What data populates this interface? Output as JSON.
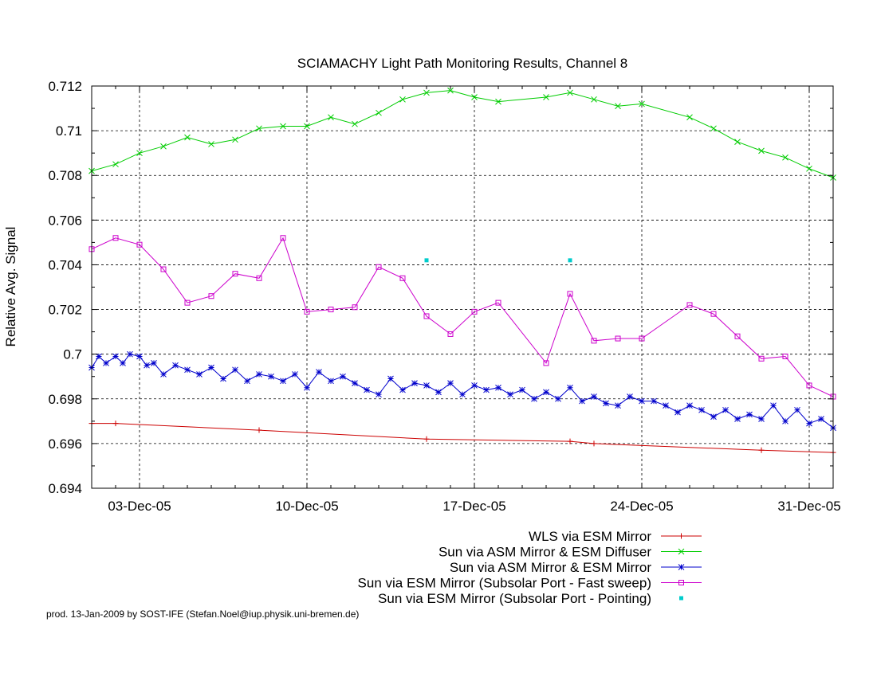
{
  "credit": "prod. 13-Jan-2009 by SOST-IFE (Stefan.Noel@iup.physik.uni-bremen.de)",
  "chart_data": {
    "type": "line",
    "title": "SCIAMACHY Light Path Monitoring Results, Channel 8",
    "xlabel": "",
    "ylabel": "Relative Avg. Signal",
    "xlim": [
      "2005-12-01",
      "2006-01-01"
    ],
    "ylim": [
      0.694,
      0.712
    ],
    "x_ticks": [
      "03-Dec-05",
      "10-Dec-05",
      "17-Dec-05",
      "24-Dec-05",
      "31-Dec-05"
    ],
    "y_ticks": [
      "0.694",
      "0.696",
      "0.698",
      "0.7",
      "0.702",
      "0.704",
      "0.706",
      "0.708",
      "0.71",
      "0.712"
    ],
    "grid": true,
    "legend_position": "below-right",
    "series": [
      {
        "name": "WLS via ESM Mirror",
        "color": "#cc0000",
        "marker": "plus",
        "x": [
          "2005-12-01",
          "2005-12-02",
          "2005-12-08",
          "2005-12-15",
          "2005-12-21",
          "2005-12-22",
          "2005-12-29",
          "2006-01-01"
        ],
        "y": [
          0.6969,
          0.6969,
          0.6966,
          0.6962,
          0.6961,
          0.696,
          0.6957,
          0.6956
        ]
      },
      {
        "name": "Sun via ASM Mirror & ESM Diffuser",
        "color": "#00cc00",
        "marker": "cross",
        "x": [
          "2005-12-01",
          "2005-12-02",
          "2005-12-03",
          "2005-12-04",
          "2005-12-05",
          "2005-12-06",
          "2005-12-07",
          "2005-12-08",
          "2005-12-09",
          "2005-12-10",
          "2005-12-11",
          "2005-12-12",
          "2005-12-13",
          "2005-12-14",
          "2005-12-15",
          "2005-12-16",
          "2005-12-17",
          "2005-12-18",
          "2005-12-20",
          "2005-12-21",
          "2005-12-22",
          "2005-12-23",
          "2005-12-24",
          "2005-12-26",
          "2005-12-27",
          "2005-12-28",
          "2005-12-29",
          "2005-12-30",
          "2005-12-31",
          "2006-01-01"
        ],
        "y": [
          0.7082,
          0.7085,
          0.709,
          0.7093,
          0.7097,
          0.7094,
          0.7096,
          0.7101,
          0.7102,
          0.7102,
          0.7106,
          0.7103,
          0.7108,
          0.7114,
          0.7117,
          0.7118,
          0.7115,
          0.7113,
          0.7115,
          0.7117,
          0.7114,
          0.7111,
          0.7112,
          0.7106,
          0.7101,
          0.7095,
          0.7091,
          0.7088,
          0.7083,
          0.7079
        ]
      },
      {
        "name": "Sun via ASM Mirror & ESM Mirror",
        "color": "#0000cc",
        "marker": "star",
        "x": [
          "2005-12-01",
          "2005-12-01.3",
          "2005-12-01.6",
          "2005-12-02",
          "2005-12-02.3",
          "2005-12-02.6",
          "2005-12-03",
          "2005-12-03.3",
          "2005-12-03.6",
          "2005-12-04",
          "2005-12-04.5",
          "2005-12-05",
          "2005-12-05.5",
          "2005-12-06",
          "2005-12-06.5",
          "2005-12-07",
          "2005-12-07.5",
          "2005-12-08",
          "2005-12-08.5",
          "2005-12-09",
          "2005-12-09.5",
          "2005-12-10",
          "2005-12-10.5",
          "2005-12-11",
          "2005-12-11.5",
          "2005-12-12",
          "2005-12-12.5",
          "2005-12-13",
          "2005-12-13.5",
          "2005-12-14",
          "2005-12-14.5",
          "2005-12-15",
          "2005-12-15.5",
          "2005-12-16",
          "2005-12-16.5",
          "2005-12-17",
          "2005-12-17.5",
          "2005-12-18",
          "2005-12-18.5",
          "2005-12-19",
          "2005-12-19.5",
          "2005-12-20",
          "2005-12-20.5",
          "2005-12-21",
          "2005-12-21.5",
          "2005-12-22",
          "2005-12-22.5",
          "2005-12-23",
          "2005-12-23.5",
          "2005-12-24",
          "2005-12-24.5",
          "2005-12-25",
          "2005-12-25.5",
          "2005-12-26",
          "2005-12-26.5",
          "2005-12-27",
          "2005-12-27.5",
          "2005-12-28",
          "2005-12-28.5",
          "2005-12-29",
          "2005-12-29.5",
          "2005-12-30",
          "2005-12-30.5",
          "2005-12-31",
          "2005-12-31.5",
          "2006-01-01"
        ],
        "y": [
          0.6994,
          0.6999,
          0.6996,
          0.6999,
          0.6996,
          0.7,
          0.6999,
          0.6995,
          0.6996,
          0.6991,
          0.6995,
          0.6993,
          0.6991,
          0.6994,
          0.6989,
          0.6993,
          0.6988,
          0.6991,
          0.699,
          0.6988,
          0.6991,
          0.6985,
          0.6992,
          0.6988,
          0.699,
          0.6987,
          0.6984,
          0.6982,
          0.6989,
          0.6984,
          0.6987,
          0.6986,
          0.6983,
          0.6987,
          0.6982,
          0.6986,
          0.6984,
          0.6985,
          0.6982,
          0.6984,
          0.698,
          0.6983,
          0.698,
          0.6985,
          0.6979,
          0.6981,
          0.6978,
          0.6977,
          0.6981,
          0.6979,
          0.6979,
          0.6977,
          0.6974,
          0.6977,
          0.6975,
          0.6972,
          0.6975,
          0.6971,
          0.6973,
          0.6971,
          0.6977,
          0.697,
          0.6975,
          0.6969,
          0.6971,
          0.6967
        ]
      },
      {
        "name": "Sun via ESM Mirror (Subsolar Port - Fast sweep)",
        "color": "#cc00cc",
        "marker": "square",
        "x": [
          "2005-12-01",
          "2005-12-02",
          "2005-12-03",
          "2005-12-04",
          "2005-12-05",
          "2005-12-06",
          "2005-12-07",
          "2005-12-08",
          "2005-12-09",
          "2005-12-10",
          "2005-12-11",
          "2005-12-12",
          "2005-12-13",
          "2005-12-14",
          "2005-12-15",
          "2005-12-16",
          "2005-12-17",
          "2005-12-18",
          "2005-12-20",
          "2005-12-21",
          "2005-12-22",
          "2005-12-23",
          "2005-12-24",
          "2005-12-26",
          "2005-12-27",
          "2005-12-28",
          "2005-12-29",
          "2005-12-30",
          "2005-12-31",
          "2006-01-01"
        ],
        "y": [
          0.7047,
          0.7052,
          0.7049,
          0.7038,
          0.7023,
          0.7026,
          0.7036,
          0.7034,
          0.7052,
          0.7019,
          0.702,
          0.7021,
          0.7039,
          0.7034,
          0.7017,
          0.7009,
          0.7019,
          0.7023,
          0.6996,
          0.7027,
          0.7006,
          0.7007,
          0.7007,
          0.7022,
          0.7018,
          0.7008,
          0.6998,
          0.6999,
          0.6986,
          0.6981
        ]
      },
      {
        "name": "Sun via ESM Mirror (Subsolar Port - Pointing)",
        "color": "#00cccc",
        "marker": "dot",
        "x": [
          "2005-12-15",
          "2005-12-21"
        ],
        "y": [
          0.7042,
          0.7042
        ]
      }
    ]
  }
}
